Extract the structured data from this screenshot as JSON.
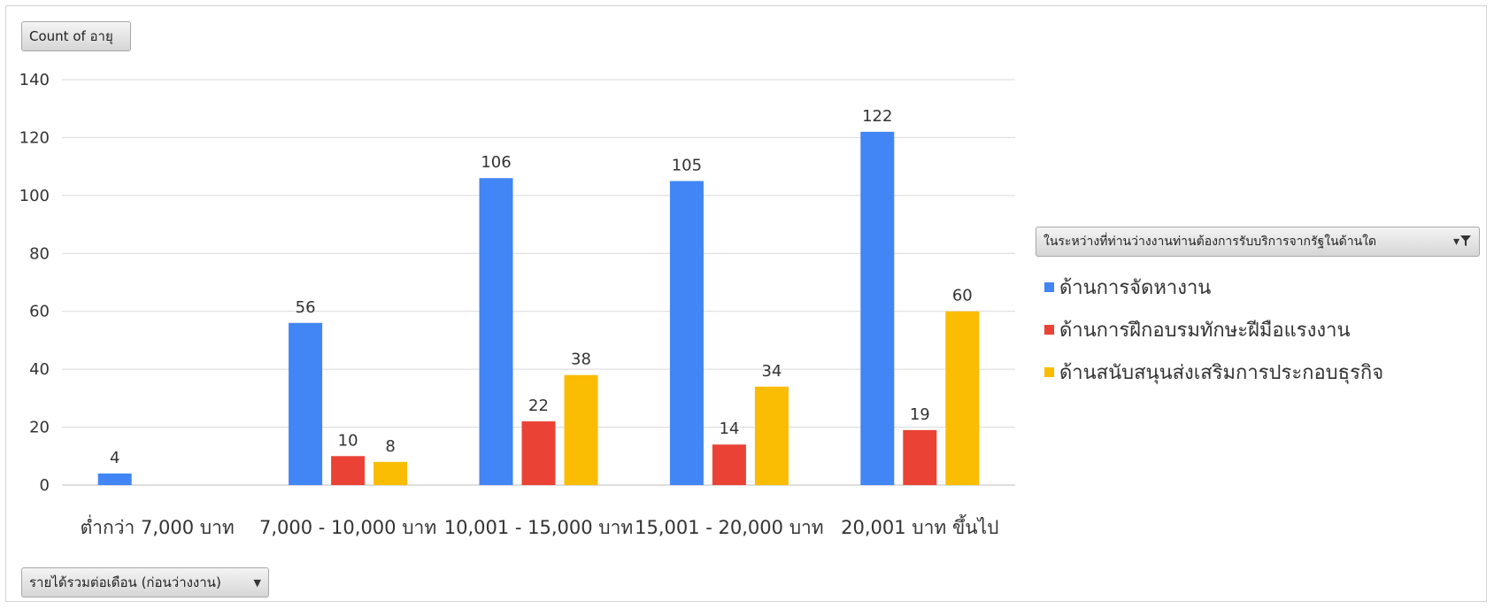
{
  "buttons": {
    "value_field": "Count of อายุ",
    "axis_field": "รายได้รวมต่อเดือน (ก่อนว่างงาน)",
    "legend_field": "ในระหว่างที่ท่านว่างงานท่านต้องการรับบริการจากรัฐในด้านใด"
  },
  "icons": {
    "axis_dropdown": "dropdown-arrow-icon",
    "legend_filter": "filter-funnel-icon"
  },
  "chart_data": {
    "type": "bar",
    "categories": [
      "ต่ำกว่า 7,000 บาท",
      "7,000 - 10,000 บาท",
      "10,001 - 15,000 บาท",
      "15,001 - 20,000 บาท",
      "20,001 บาท ขึ้นไป"
    ],
    "series": [
      {
        "name": "ด้านการจัดหางาน",
        "color": "#4285F4",
        "values": [
          4,
          56,
          106,
          105,
          122
        ]
      },
      {
        "name": "ด้านการฝึกอบรมทักษะฝีมือแรงงาน",
        "color": "#EA4335",
        "values": [
          null,
          10,
          22,
          14,
          19
        ]
      },
      {
        "name": "ด้านสนับสนุนส่งเสริมการประกอบธุรกิจ",
        "color": "#FBBC04",
        "values": [
          null,
          8,
          38,
          34,
          60
        ]
      }
    ],
    "yticks": [
      0,
      20,
      40,
      60,
      80,
      100,
      120,
      140
    ],
    "ylim": [
      0,
      140
    ],
    "data_labels": true,
    "grid": true,
    "legend_position": "right"
  }
}
